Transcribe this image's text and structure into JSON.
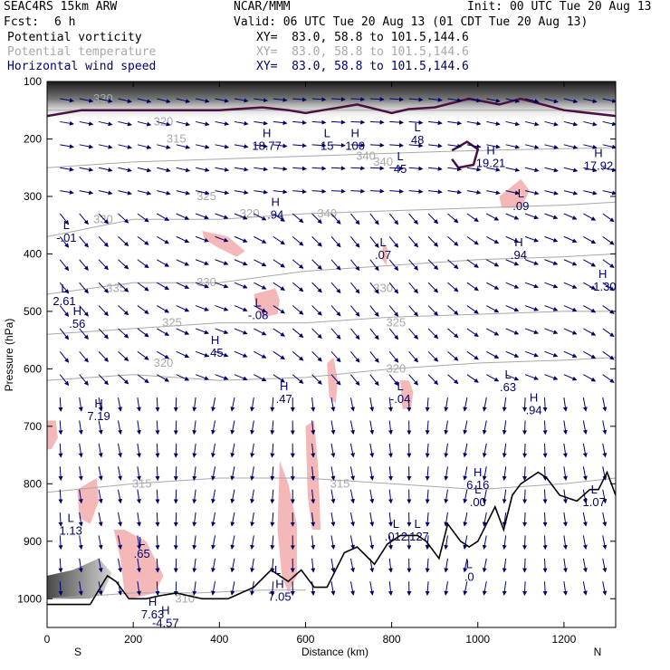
{
  "header": {
    "model": "SEAC4RS 15km ARW",
    "center": "NCAR/MMM",
    "init": "Init: 00 UTC Tue 20 Aug 13",
    "fcst_label": "Fcst:",
    "fcst_value": "6 h",
    "valid": "Valid: 06 UTC Tue 20 Aug 13 (01 CDT Tue 20 Aug 13)",
    "field1": "Potential vorticity",
    "field2": "Potential temperature",
    "field3": "Horizontal wind speed",
    "xy": "XY=  83.0, 58.8 to 101.5,144.6"
  },
  "colors": {
    "pv_contour": "#4a1040",
    "pv_fill": "#f4b8b8",
    "theta": "#a8a8a8",
    "wind": "#00006e",
    "terrain": "#000000",
    "label": "#00006e"
  },
  "chart_data": {
    "type": "cross-section",
    "xlabel": "Distance (km)",
    "ylabel": "Pressure (hPa)",
    "xlim": [
      0,
      1320
    ],
    "ylim": [
      1050,
      100
    ],
    "x_ticks": [
      0,
      200,
      400,
      600,
      800,
      1000,
      1200
    ],
    "y_ticks": [
      100,
      200,
      300,
      400,
      500,
      600,
      700,
      800,
      900,
      1000
    ],
    "endpoints": {
      "left": "S",
      "right": "N"
    },
    "theta_contours": [
      {
        "label": "335",
        "points": [
          [
            0,
            370
          ],
          [
            200,
            340
          ],
          [
            400,
            340
          ],
          [
            600,
            330
          ],
          [
            800,
            325
          ],
          [
            1000,
            320
          ],
          [
            1200,
            315
          ],
          [
            1320,
            310
          ]
        ]
      },
      {
        "label": "330",
        "points": [
          [
            0,
            470
          ],
          [
            200,
            450
          ],
          [
            400,
            450
          ],
          [
            600,
            430
          ],
          [
            800,
            420
          ],
          [
            1000,
            410
          ],
          [
            1200,
            405
          ],
          [
            1320,
            400
          ]
        ]
      },
      {
        "label": "325",
        "points": [
          [
            0,
            540
          ],
          [
            200,
            530
          ],
          [
            400,
            520
          ],
          [
            600,
            520
          ],
          [
            800,
            510
          ],
          [
            1000,
            505
          ],
          [
            1200,
            500
          ],
          [
            1320,
            500
          ]
        ]
      },
      {
        "label": "320",
        "points": [
          [
            0,
            620
          ],
          [
            200,
            610
          ],
          [
            400,
            620
          ],
          [
            600,
            615
          ],
          [
            800,
            600
          ],
          [
            1000,
            590
          ],
          [
            1200,
            585
          ],
          [
            1320,
            580
          ]
        ]
      },
      {
        "label": "315",
        "points": [
          [
            0,
            815
          ],
          [
            200,
            800
          ],
          [
            400,
            790
          ],
          [
            600,
            790
          ],
          [
            800,
            800
          ],
          [
            1000,
            810
          ],
          [
            1200,
            800
          ],
          [
            1320,
            790
          ]
        ]
      },
      {
        "label": "310",
        "points": [
          [
            0,
            1000
          ],
          [
            200,
            990
          ],
          [
            350,
            990
          ],
          [
            500,
            985
          ],
          [
            600,
            985
          ]
        ]
      },
      {
        "label": "340",
        "points": [
          [
            0,
            250
          ],
          [
            200,
            240
          ],
          [
            400,
            235
          ],
          [
            600,
            230
          ],
          [
            800,
            225
          ],
          [
            1000,
            220
          ],
          [
            1320,
            215
          ]
        ]
      },
      {
        "label": "350",
        "points": [
          [
            0,
            150
          ],
          [
            400,
            150
          ],
          [
            800,
            150
          ],
          [
            1320,
            150
          ]
        ]
      }
    ],
    "theta_label_positions": [
      [
        130,
        340
      ],
      [
        370,
        300
      ],
      [
        470,
        330
      ],
      [
        650,
        330
      ],
      [
        160,
        460
      ],
      [
        370,
        450
      ],
      [
        780,
        460
      ],
      [
        290,
        520
      ],
      [
        810,
        520
      ],
      [
        270,
        590
      ],
      [
        810,
        600
      ],
      [
        220,
        800
      ],
      [
        680,
        800
      ],
      [
        320,
        1000
      ],
      [
        130,
        130
      ],
      [
        270,
        170
      ],
      [
        300,
        200
      ],
      [
        740,
        230
      ],
      [
        780,
        240
      ]
    ],
    "terrain": [
      [
        0,
        1010
      ],
      [
        100,
        1010
      ],
      [
        140,
        960
      ],
      [
        160,
        970
      ],
      [
        190,
        1000
      ],
      [
        230,
        1000
      ],
      [
        260,
        995
      ],
      [
        300,
        990
      ],
      [
        360,
        1000
      ],
      [
        420,
        1000
      ],
      [
        480,
        980
      ],
      [
        520,
        950
      ],
      [
        540,
        960
      ],
      [
        560,
        970
      ],
      [
        590,
        950
      ],
      [
        620,
        980
      ],
      [
        650,
        980
      ],
      [
        690,
        920
      ],
      [
        720,
        910
      ],
      [
        760,
        940
      ],
      [
        790,
        905
      ],
      [
        820,
        890
      ],
      [
        860,
        890
      ],
      [
        880,
        900
      ],
      [
        910,
        930
      ],
      [
        930,
        870
      ],
      [
        960,
        900
      ],
      [
        980,
        910
      ],
      [
        1000,
        900
      ],
      [
        1040,
        840
      ],
      [
        1060,
        880
      ],
      [
        1080,
        820
      ],
      [
        1100,
        800
      ],
      [
        1140,
        780
      ],
      [
        1160,
        790
      ],
      [
        1190,
        820
      ],
      [
        1230,
        830
      ],
      [
        1260,
        810
      ],
      [
        1280,
        810
      ],
      [
        1300,
        780
      ],
      [
        1320,
        820
      ]
    ],
    "pv_positive_regions": [
      {
        "points": [
          [
            0,
            690
          ],
          [
            20,
            690
          ],
          [
            25,
            720
          ],
          [
            10,
            740
          ],
          [
            0,
            740
          ]
        ]
      },
      {
        "points": [
          [
            70,
            810
          ],
          [
            115,
            790
          ],
          [
            120,
            830
          ],
          [
            100,
            870
          ],
          [
            75,
            860
          ]
        ]
      },
      {
        "points": [
          [
            155,
            880
          ],
          [
            180,
            880
          ],
          [
            230,
            900
          ],
          [
            270,
            960
          ],
          [
            250,
            990
          ],
          [
            195,
            1000
          ],
          [
            180,
            990
          ],
          [
            170,
            930
          ]
        ]
      },
      {
        "points": [
          [
            360,
            360
          ],
          [
            420,
            370
          ],
          [
            460,
            395
          ],
          [
            440,
            405
          ],
          [
            400,
            390
          ],
          [
            365,
            375
          ]
        ]
      },
      {
        "points": [
          [
            480,
            470
          ],
          [
            530,
            460
          ],
          [
            540,
            480
          ],
          [
            535,
            505
          ],
          [
            500,
            510
          ],
          [
            485,
            490
          ]
        ]
      },
      {
        "points": [
          [
            540,
            760
          ],
          [
            560,
            800
          ],
          [
            580,
            870
          ],
          [
            580,
            960
          ],
          [
            560,
            990
          ],
          [
            545,
            960
          ],
          [
            535,
            880
          ]
        ]
      },
      {
        "points": [
          [
            600,
            700
          ],
          [
            620,
            690
          ],
          [
            630,
            780
          ],
          [
            635,
            880
          ],
          [
            615,
            880
          ],
          [
            605,
            820
          ]
        ]
      },
      {
        "points": [
          [
            650,
            590
          ],
          [
            665,
            580
          ],
          [
            675,
            620
          ],
          [
            670,
            660
          ],
          [
            655,
            650
          ]
        ]
      },
      {
        "points": [
          [
            780,
            380
          ],
          [
            790,
            390
          ],
          [
            788,
            420
          ],
          [
            778,
            410
          ]
        ]
      },
      {
        "points": [
          [
            820,
            620
          ],
          [
            840,
            620
          ],
          [
            850,
            640
          ],
          [
            845,
            670
          ],
          [
            825,
            670
          ]
        ]
      },
      {
        "points": [
          [
            1050,
            300
          ],
          [
            1100,
            270
          ],
          [
            1120,
            290
          ],
          [
            1100,
            320
          ],
          [
            1055,
            320
          ]
        ]
      }
    ],
    "pv_contour_2": [
      {
        "points": [
          [
            0,
            160
          ],
          [
            80,
            150
          ],
          [
            200,
            150
          ],
          [
            300,
            150
          ],
          [
            400,
            150
          ],
          [
            500,
            145
          ],
          [
            560,
            150
          ],
          [
            600,
            155
          ],
          [
            640,
            150
          ],
          [
            680,
            145
          ],
          [
            720,
            140
          ],
          [
            800,
            155
          ],
          [
            840,
            148
          ],
          [
            900,
            145
          ],
          [
            980,
            130
          ],
          [
            1050,
            140
          ],
          [
            1100,
            130
          ],
          [
            1200,
            150
          ],
          [
            1320,
            160
          ]
        ]
      },
      {
        "points": [
          [
            940,
            220
          ],
          [
            975,
            205
          ],
          [
            1000,
            218
          ],
          [
            990,
            245
          ],
          [
            955,
            250
          ],
          [
            940,
            235
          ]
        ]
      }
    ],
    "extrema": [
      {
        "type": "H",
        "value": "18.77",
        "x": 510,
        "y": 200
      },
      {
        "type": "L",
        "value": "15",
        "x": 650,
        "y": 200
      },
      {
        "type": "H",
        "value": "100",
        "x": 715,
        "y": 200
      },
      {
        "type": "L",
        "value": "48",
        "x": 860,
        "y": 190
      },
      {
        "type": "L",
        "value": "45",
        "x": 820,
        "y": 240
      },
      {
        "type": "H",
        "value": "19.21",
        "x": 1030,
        "y": 230
      },
      {
        "type": "H",
        "value": "17.92",
        "x": 1280,
        "y": 235
      },
      {
        "type": "L",
        "value": ".09",
        "x": 1100,
        "y": 305
      },
      {
        "type": "H",
        "value": ".94",
        "x": 530,
        "y": 320
      },
      {
        "type": "L",
        "value": "-.01",
        "x": 45,
        "y": 360
      },
      {
        "type": "L",
        "value": ".07",
        "x": 780,
        "y": 390
      },
      {
        "type": "H",
        "value": ".94",
        "x": 1095,
        "y": 390
      },
      {
        "type": "H",
        "value": "-1.30",
        "x": 1290,
        "y": 445
      },
      {
        "type": "L",
        "value": "2.61",
        "x": 40,
        "y": 470
      },
      {
        "type": "L",
        "value": "-.08",
        "x": 490,
        "y": 495
      },
      {
        "type": "H",
        "value": ".56",
        "x": 70,
        "y": 510
      },
      {
        "type": "H",
        "value": ".45",
        "x": 390,
        "y": 560
      },
      {
        "type": "H",
        "value": ".47",
        "x": 550,
        "y": 640
      },
      {
        "type": "L",
        "value": "-.04",
        "x": 820,
        "y": 640
      },
      {
        "type": "L",
        "value": ".63",
        "x": 1070,
        "y": 620
      },
      {
        "type": "H",
        "value": ".94",
        "x": 1130,
        "y": 660
      },
      {
        "type": "H",
        "value": "7.19",
        "x": 120,
        "y": 670
      },
      {
        "type": "H",
        "value": "6.16",
        "x": 1000,
        "y": 790
      },
      {
        "type": "L",
        "value": ".00",
        "x": 1000,
        "y": 820
      },
      {
        "type": "L",
        "value": "1.07",
        "x": 1270,
        "y": 820
      },
      {
        "type": "L",
        "value": "1.13",
        "x": 55,
        "y": 870
      },
      {
        "type": "L",
        "value": ".012",
        "x": 810,
        "y": 880
      },
      {
        "type": "L",
        "value": ".127",
        "x": 860,
        "y": 880
      },
      {
        "type": "L",
        "value": ".65",
        "x": 220,
        "y": 910
      },
      {
        "type": "L",
        "value": ".0",
        "x": 980,
        "y": 950
      },
      {
        "type": "H",
        "value": "7.05",
        "x": 540,
        "y": 985
      },
      {
        "type": "L",
        "value": "",
        "x": 535,
        "y": 960
      },
      {
        "type": "H",
        "value": "7.63",
        "x": 245,
        "y": 1015
      },
      {
        "type": "H",
        "value": "-4.57",
        "x": 275,
        "y": 1030
      }
    ],
    "grid": false,
    "legend": "none"
  }
}
